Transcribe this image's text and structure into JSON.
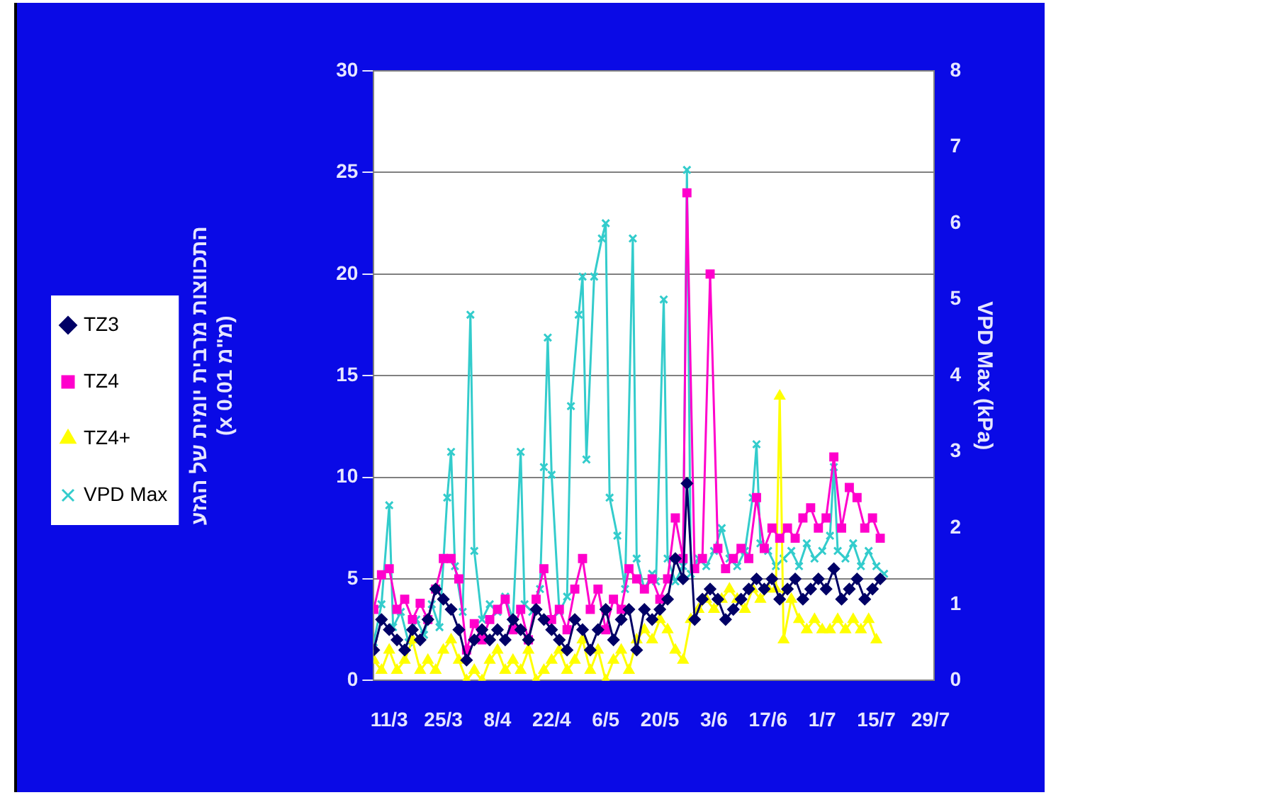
{
  "chart_data": {
    "type": "line",
    "ylabel": "התכווצות מרבית יומית של הגזע\n(x 0.01 מ\"מ)",
    "y2label": "VPD Max (kPa)",
    "xlim": [
      "--03-07",
      "--07-30"
    ],
    "xticks": [
      {
        "value": "--03-11",
        "label": "11/3"
      },
      {
        "value": "--03-25",
        "label": "25/3"
      },
      {
        "value": "--04-08",
        "label": "8/4"
      },
      {
        "value": "--04-22",
        "label": "22/4"
      },
      {
        "value": "--05-06",
        "label": "6/5"
      },
      {
        "value": "--05-20",
        "label": "20/5"
      },
      {
        "value": "--06-03",
        "label": "3/6"
      },
      {
        "value": "--06-17",
        "label": "17/6"
      },
      {
        "value": "--07-01",
        "label": "1/7"
      },
      {
        "value": "--07-15",
        "label": "15/7"
      },
      {
        "value": "--07-29",
        "label": "29/7"
      }
    ],
    "ylim": [
      0,
      30
    ],
    "yticks": [
      0,
      5,
      10,
      15,
      20,
      25,
      30
    ],
    "y2lim": [
      0,
      8
    ],
    "y2ticks": [
      0,
      1,
      2,
      3,
      4,
      5,
      6,
      7,
      8
    ],
    "grid": "y",
    "legend": "left",
    "line_style": "solid",
    "series": [
      {
        "name": "TZ3",
        "color": "#000066",
        "marker": "diamond",
        "x": [
          "--03-07",
          "--03-09",
          "--03-11",
          "--03-13",
          "--03-15",
          "--03-17",
          "--03-19",
          "--03-21",
          "--03-23",
          "--03-25",
          "--03-27",
          "--03-29",
          "--03-31",
          "--04-02",
          "--04-04",
          "--04-06",
          "--04-08",
          "--04-10",
          "--04-12",
          "--04-14",
          "--04-16",
          "--04-18",
          "--04-20",
          "--04-22",
          "--04-24",
          "--04-26",
          "--04-28",
          "--04-30",
          "--05-02",
          "--05-04",
          "--05-06",
          "--05-08",
          "--05-10",
          "--05-12",
          "--05-14",
          "--05-16",
          "--05-18",
          "--05-20",
          "--05-22",
          "--05-24",
          "--05-26",
          "--05-27",
          "--05-29",
          "--05-31",
          "--06-02",
          "--06-04",
          "--06-06",
          "--06-08",
          "--06-10",
          "--06-12",
          "--06-14",
          "--06-16",
          "--06-18",
          "--06-20",
          "--06-22",
          "--06-24",
          "--06-26",
          "--06-28",
          "--06-30",
          "--07-02",
          "--07-04",
          "--07-06",
          "--07-08",
          "--07-10",
          "--07-12",
          "--07-14",
          "--07-16"
        ],
        "values": [
          1.5,
          3,
          2.5,
          2,
          1.5,
          2.5,
          2,
          3,
          4.5,
          4,
          3.5,
          2.5,
          1,
          2,
          2.5,
          2,
          2.5,
          2,
          3,
          2.5,
          2,
          3.5,
          3,
          2.5,
          2,
          1.5,
          3,
          2.5,
          1.5,
          2.5,
          3.5,
          2,
          3,
          3.5,
          1.5,
          3.5,
          3,
          3.5,
          4,
          6,
          5,
          9.7,
          3,
          4,
          4.5,
          4,
          3,
          3.5,
          4,
          4.5,
          5,
          4.5,
          5,
          4,
          4.5,
          5,
          4,
          4.5,
          5,
          4.5,
          5.5,
          4,
          4.5,
          5,
          4,
          4.5,
          5
        ]
      },
      {
        "name": "TZ4",
        "color": "#ff00cc",
        "marker": "square",
        "x": [
          "--03-07",
          "--03-09",
          "--03-11",
          "--03-13",
          "--03-15",
          "--03-17",
          "--03-19",
          "--03-21",
          "--03-23",
          "--03-25",
          "--03-27",
          "--03-29",
          "--03-31",
          "--04-02",
          "--04-04",
          "--04-06",
          "--04-08",
          "--04-10",
          "--04-12",
          "--04-14",
          "--04-16",
          "--04-18",
          "--04-20",
          "--04-22",
          "--04-24",
          "--04-26",
          "--04-28",
          "--04-30",
          "--05-02",
          "--05-04",
          "--05-06",
          "--05-08",
          "--05-10",
          "--05-12",
          "--05-14",
          "--05-16",
          "--05-18",
          "--05-20",
          "--05-22",
          "--05-24",
          "--05-26",
          "--05-27",
          "--05-29",
          "--05-31",
          "--06-02",
          "--06-04",
          "--06-06",
          "--06-08",
          "--06-10",
          "--06-12",
          "--06-14",
          "--06-16",
          "--06-18",
          "--06-20",
          "--06-22",
          "--06-24",
          "--06-26",
          "--06-28",
          "--06-30",
          "--07-02",
          "--07-04",
          "--07-06",
          "--07-08",
          "--07-10",
          "--07-12",
          "--07-14",
          "--07-16"
        ],
        "values": [
          3.5,
          5.2,
          5.5,
          3.5,
          4,
          3,
          3.8,
          3,
          4.5,
          6,
          6,
          5,
          1.5,
          2.8,
          2,
          3,
          3.5,
          4,
          2.5,
          3.5,
          2,
          4,
          5.5,
          3,
          3.5,
          2.5,
          4.5,
          6,
          3.5,
          4.5,
          2.5,
          4,
          3.5,
          5.5,
          5,
          4.5,
          5,
          4,
          5,
          8,
          6,
          24,
          5.5,
          6,
          20,
          6.5,
          5.5,
          6,
          6.5,
          6,
          9,
          6.5,
          7.5,
          7,
          7.5,
          7,
          8,
          8.5,
          7.5,
          8,
          11,
          7.5,
          9.5,
          9,
          7.5,
          8,
          7
        ]
      },
      {
        "name": "TZ4+",
        "color": "#ffff00",
        "marker": "triangle",
        "x": [
          "--03-07",
          "--03-09",
          "--03-11",
          "--03-13",
          "--03-15",
          "--03-17",
          "--03-19",
          "--03-21",
          "--03-23",
          "--03-25",
          "--03-27",
          "--03-29",
          "--03-31",
          "--04-02",
          "--04-04",
          "--04-06",
          "--04-08",
          "--04-10",
          "--04-12",
          "--04-14",
          "--04-16",
          "--04-18",
          "--04-20",
          "--04-22",
          "--04-24",
          "--04-26",
          "--04-28",
          "--04-30",
          "--05-02",
          "--05-04",
          "--05-06",
          "--05-08",
          "--05-10",
          "--05-12",
          "--05-14",
          "--05-16",
          "--05-18",
          "--05-20",
          "--05-22",
          "--05-24",
          "--05-26",
          "--05-28",
          "--05-30",
          "--06-01",
          "--06-03",
          "--06-05",
          "--06-07",
          "--06-09",
          "--06-11",
          "--06-13",
          "--06-15",
          "--06-17",
          "--06-19",
          "--06-20",
          "--06-21",
          "--06-23",
          "--06-25",
          "--06-27",
          "--06-29",
          "--07-01",
          "--07-03",
          "--07-05",
          "--07-07",
          "--07-09",
          "--07-11",
          "--07-13",
          "--07-15"
        ],
        "values": [
          1,
          0.5,
          1.5,
          0.5,
          1,
          2,
          0.5,
          1,
          0.5,
          1.5,
          2,
          1,
          0,
          0.5,
          0,
          1,
          1.5,
          0.5,
          1,
          0.5,
          1.5,
          0,
          0.5,
          1,
          1.5,
          0.5,
          1,
          2,
          0.5,
          1.5,
          0,
          1,
          1.5,
          0.5,
          2,
          2.5,
          2,
          3,
          2.5,
          1.5,
          1,
          3,
          3.5,
          4,
          3.5,
          4,
          4.5,
          4,
          3.5,
          4.5,
          4,
          4.5,
          4.5,
          14,
          2,
          4,
          3,
          2.5,
          3,
          2.5,
          2.5,
          3,
          2.5,
          3,
          2.5,
          3,
          2
        ]
      },
      {
        "name": "VPD Max",
        "color": "#33cccc",
        "marker": "cross",
        "axis": "y2",
        "x": [
          "--03-07",
          "--03-09",
          "--03-11",
          "--03-12",
          "--03-14",
          "--03-16",
          "--03-18",
          "--03-20",
          "--03-22",
          "--03-24",
          "--03-26",
          "--03-27",
          "--03-28",
          "--03-30",
          "--04-01",
          "--04-02",
          "--04-04",
          "--04-06",
          "--04-08",
          "--04-10",
          "--04-12",
          "--04-14",
          "--04-15",
          "--04-17",
          "--04-19",
          "--04-20",
          "--04-21",
          "--04-22",
          "--04-24",
          "--04-26",
          "--04-27",
          "--04-29",
          "--04-30",
          "--05-01",
          "--05-03",
          "--05-05",
          "--05-06",
          "--05-07",
          "--05-09",
          "--05-11",
          "--05-13",
          "--05-14",
          "--05-16",
          "--05-18",
          "--05-19",
          "--05-21",
          "--05-22",
          "--05-24",
          "--05-26",
          "--05-27",
          "--05-28",
          "--05-30",
          "--06-01",
          "--06-03",
          "--06-05",
          "--06-07",
          "--06-09",
          "--06-11",
          "--06-13",
          "--06-14",
          "--06-15",
          "--06-17",
          "--06-19",
          "--06-21",
          "--06-23",
          "--06-25",
          "--06-27",
          "--06-29",
          "--07-01",
          "--07-03",
          "--07-04",
          "--07-05",
          "--07-07",
          "--07-09",
          "--07-11",
          "--07-13",
          "--07-15",
          "--07-17"
        ],
        "values": [
          0.5,
          1,
          2.3,
          0.7,
          0.9,
          0.5,
          0.8,
          0.6,
          1,
          0.7,
          2.4,
          3,
          1.5,
          0.9,
          4.8,
          1.7,
          0.8,
          1,
          0.9,
          1.1,
          0.8,
          3,
          1,
          0.9,
          1.2,
          2.8,
          4.5,
          2.7,
          0.9,
          1.1,
          3.6,
          4.8,
          5.3,
          2.9,
          5.3,
          5.8,
          6,
          2.4,
          1.9,
          1.2,
          5.8,
          1.6,
          1.2,
          1.4,
          1.3,
          5,
          1.6,
          1.3,
          1.5,
          6.7,
          1.4,
          1.6,
          1.5,
          1.7,
          2,
          1.6,
          1.5,
          1.7,
          2.4,
          3.1,
          1.8,
          1.7,
          1.5,
          1.6,
          1.7,
          1.5,
          1.8,
          1.6,
          1.7,
          1.9,
          2.8,
          1.7,
          1.6,
          1.8,
          1.5,
          1.7,
          1.5,
          1.4
        ]
      }
    ]
  }
}
